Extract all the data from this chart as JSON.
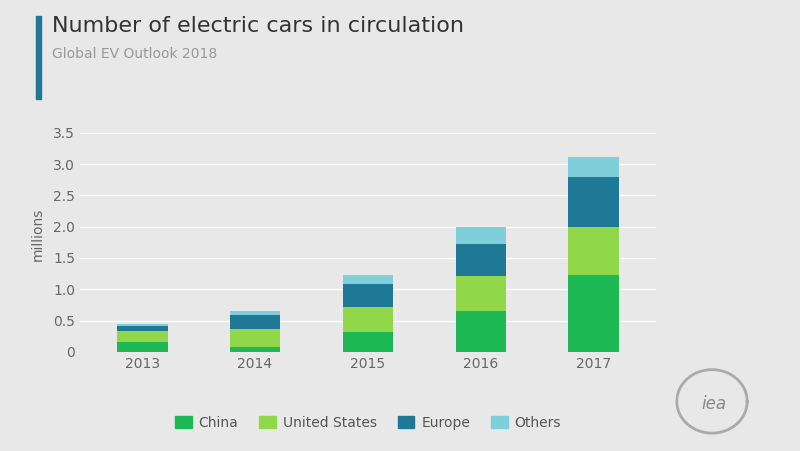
{
  "title": "Number of electric cars in circulation",
  "subtitle": "Global EV Outlook 2018",
  "ylabel": "millions",
  "years": [
    2013,
    2014,
    2015,
    2016,
    2017
  ],
  "china": [
    0.16,
    0.08,
    0.31,
    0.65,
    1.23
  ],
  "united_states": [
    0.17,
    0.29,
    0.41,
    0.56,
    0.76
  ],
  "europe": [
    0.09,
    0.22,
    0.37,
    0.51,
    0.81
  ],
  "others": [
    0.02,
    0.06,
    0.14,
    0.27,
    0.32
  ],
  "color_china": "#1db954",
  "color_us": "#90d84a",
  "color_europe": "#1e7896",
  "color_others": "#7ecfda",
  "bg_color": "#e8e8e8",
  "bar_width": 0.45,
  "ylim": [
    0,
    3.75
  ],
  "yticks": [
    0,
    0.5,
    1.0,
    1.5,
    2.0,
    2.5,
    3.0,
    3.5
  ],
  "title_fontsize": 16,
  "subtitle_fontsize": 10,
  "axis_fontsize": 10,
  "legend_fontsize": 10,
  "accent_color": "#1e7896"
}
